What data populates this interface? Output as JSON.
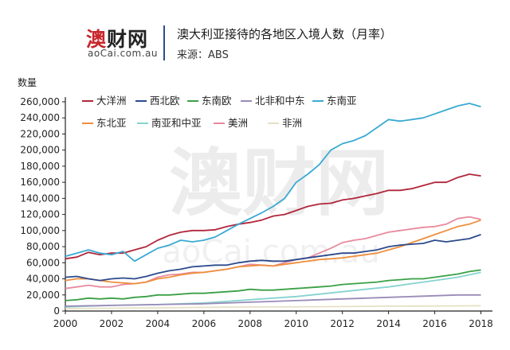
{
  "logo": {
    "main_prefix": "澳",
    "main_rest": "财网",
    "sub": "aoCai.com.au"
  },
  "header": {
    "title": "澳大利亚接待的各地区入境人数（月率）",
    "source": "来源：ABS"
  },
  "watermark": {
    "main": "澳财网",
    "sub": "aoCai.com.au"
  },
  "chart_data": {
    "type": "line",
    "title": "澳大利亚接待的各地区入境人数（月率）",
    "ylabel": "数量",
    "xlabel": "",
    "xlim": [
      2000,
      2018.5
    ],
    "ylim": [
      0,
      260000
    ],
    "x_ticks": [
      2000,
      2002,
      2004,
      2006,
      2008,
      2010,
      2012,
      2014,
      2016,
      2018
    ],
    "y_ticks": [
      0,
      20000,
      40000,
      60000,
      80000,
      100000,
      120000,
      140000,
      160000,
      180000,
      200000,
      220000,
      240000,
      260000
    ],
    "y_tick_labels": [
      "0",
      "20,000",
      "40,000",
      "60,000",
      "80,000",
      "100,000",
      "120,000",
      "140,000",
      "160,000",
      "180,000",
      "200,000",
      "220,000",
      "240,000",
      "260,000"
    ],
    "grid": false,
    "legend": "top-left, inside plot, two rows",
    "series": [
      {
        "name": "大洋洲",
        "color": "#b0263a",
        "x": [
          2000,
          2000.5,
          2001,
          2001.5,
          2002,
          2002.5,
          2003,
          2003.5,
          2004,
          2004.5,
          2005,
          2005.5,
          2006,
          2006.5,
          2007,
          2007.5,
          2008,
          2008.5,
          2009,
          2009.5,
          2010,
          2010.5,
          2011,
          2011.5,
          2012,
          2012.5,
          2013,
          2013.5,
          2014,
          2014.5,
          2015,
          2015.5,
          2016,
          2016.5,
          2017,
          2017.5,
          2018
        ],
        "y": [
          65000,
          67000,
          73000,
          70000,
          72000,
          72000,
          76000,
          80000,
          88000,
          94000,
          98000,
          100000,
          100000,
          101000,
          105000,
          108000,
          110000,
          113000,
          118000,
          120000,
          125000,
          130000,
          133000,
          134000,
          138000,
          140000,
          143000,
          146000,
          150000,
          150000,
          152000,
          156000,
          160000,
          160000,
          166000,
          170000,
          168000
        ]
      },
      {
        "name": "西北欧",
        "color": "#2c4a8c",
        "x": [
          2000,
          2000.5,
          2001,
          2001.5,
          2002,
          2002.5,
          2003,
          2003.5,
          2004,
          2004.5,
          2005,
          2005.5,
          2006,
          2006.5,
          2007,
          2007.5,
          2008,
          2008.5,
          2009,
          2009.5,
          2010,
          2010.5,
          2011,
          2011.5,
          2012,
          2012.5,
          2013,
          2013.5,
          2014,
          2014.5,
          2015,
          2015.5,
          2016,
          2016.5,
          2017,
          2017.5,
          2018
        ],
        "y": [
          42000,
          43000,
          40000,
          38000,
          40000,
          41000,
          40000,
          43000,
          47000,
          50000,
          52000,
          55000,
          56000,
          57000,
          57000,
          60000,
          62000,
          63000,
          62000,
          62000,
          64000,
          66000,
          68000,
          70000,
          72000,
          72000,
          74000,
          76000,
          80000,
          82000,
          83000,
          84000,
          88000,
          86000,
          88000,
          90000,
          95000
        ]
      },
      {
        "name": "东南欧",
        "color": "#3aa047",
        "x": [
          2000,
          2000.5,
          2001,
          2001.5,
          2002,
          2002.5,
          2003,
          2003.5,
          2004,
          2004.5,
          2005,
          2005.5,
          2006,
          2006.5,
          2007,
          2007.5,
          2008,
          2008.5,
          2009,
          2009.5,
          2010,
          2010.5,
          2011,
          2011.5,
          2012,
          2012.5,
          2013,
          2013.5,
          2014,
          2014.5,
          2015,
          2015.5,
          2016,
          2016.5,
          2017,
          2017.5,
          2018
        ],
        "y": [
          13000,
          14000,
          16000,
          15000,
          16000,
          15000,
          17000,
          18000,
          20000,
          20000,
          21000,
          22000,
          22000,
          23000,
          24000,
          25000,
          27000,
          26000,
          26000,
          27000,
          28000,
          29000,
          30000,
          31000,
          33000,
          34000,
          35000,
          36000,
          38000,
          39000,
          40000,
          40000,
          42000,
          44000,
          46000,
          49000,
          51000
        ]
      },
      {
        "name": "北非和中东",
        "color": "#9a8bb8",
        "x": [
          2000,
          2001,
          2002,
          2003,
          2004,
          2005,
          2006,
          2007,
          2008,
          2009,
          2010,
          2011,
          2012,
          2013,
          2014,
          2015,
          2016,
          2017,
          2018
        ],
        "y": [
          6000,
          6500,
          7000,
          7500,
          8000,
          8500,
          9000,
          10000,
          11000,
          12000,
          13000,
          14000,
          15000,
          16000,
          17000,
          18000,
          19000,
          20000,
          20000
        ]
      },
      {
        "name": "东南亚",
        "color": "#3aaad3",
        "x": [
          2000,
          2000.5,
          2001,
          2001.5,
          2002,
          2002.5,
          2003,
          2003.5,
          2004,
          2004.5,
          2005,
          2005.5,
          2006,
          2006.5,
          2007,
          2007.5,
          2008,
          2008.5,
          2009,
          2009.5,
          2010,
          2010.5,
          2011,
          2011.5,
          2012,
          2012.5,
          2013,
          2013.5,
          2014,
          2014.5,
          2015,
          2015.5,
          2016,
          2016.5,
          2017,
          2017.5,
          2018
        ],
        "y": [
          68000,
          72000,
          76000,
          72000,
          70000,
          74000,
          62000,
          70000,
          78000,
          82000,
          88000,
          86000,
          88000,
          92000,
          100000,
          108000,
          115000,
          122000,
          130000,
          140000,
          160000,
          170000,
          182000,
          200000,
          208000,
          212000,
          218000,
          228000,
          238000,
          236000,
          238000,
          240000,
          245000,
          250000,
          255000,
          258000,
          254000
        ]
      },
      {
        "name": "东北亚",
        "color": "#ef8f3c",
        "x": [
          2000,
          2000.5,
          2001,
          2001.5,
          2002,
          2002.5,
          2003,
          2003.5,
          2004,
          2004.5,
          2005,
          2005.5,
          2006,
          2006.5,
          2007,
          2007.5,
          2008,
          2008.5,
          2009,
          2009.5,
          2010,
          2010.5,
          2011,
          2011.5,
          2012,
          2012.5,
          2013,
          2013.5,
          2014,
          2014.5,
          2015,
          2015.5,
          2016,
          2016.5,
          2017,
          2017.5,
          2018
        ],
        "y": [
          38000,
          40000,
          40000,
          38000,
          36000,
          35000,
          34000,
          36000,
          40000,
          42000,
          45000,
          47000,
          48000,
          50000,
          52000,
          55000,
          56000,
          57000,
          56000,
          58000,
          60000,
          62000,
          64000,
          65000,
          66000,
          68000,
          70000,
          72000,
          76000,
          80000,
          85000,
          90000,
          95000,
          100000,
          105000,
          108000,
          113000
        ]
      },
      {
        "name": "南亚和中亚",
        "color": "#86d3cf",
        "x": [
          2000,
          2001,
          2002,
          2003,
          2004,
          2005,
          2006,
          2007,
          2008,
          2009,
          2010,
          2011,
          2012,
          2013,
          2014,
          2015,
          2016,
          2017,
          2018
        ],
        "y": [
          5000,
          6000,
          7000,
          7500,
          8000,
          9000,
          10000,
          12000,
          14000,
          16000,
          18000,
          21000,
          24000,
          27000,
          30000,
          34000,
          38000,
          42000,
          48000
        ]
      },
      {
        "name": "美洲",
        "color": "#e88a9e",
        "x": [
          2000,
          2000.5,
          2001,
          2001.5,
          2002,
          2002.5,
          2003,
          2003.5,
          2004,
          2004.5,
          2005,
          2005.5,
          2006,
          2006.5,
          2007,
          2007.5,
          2008,
          2008.5,
          2009,
          2009.5,
          2010,
          2010.5,
          2011,
          2011.5,
          2012,
          2012.5,
          2013,
          2013.5,
          2014,
          2014.5,
          2015,
          2015.5,
          2016,
          2016.5,
          2017,
          2017.5,
          2018
        ],
        "y": [
          28000,
          30000,
          32000,
          30000,
          30000,
          33000,
          34000,
          36000,
          42000,
          45000,
          46000,
          48000,
          48000,
          50000,
          52000,
          55000,
          58000,
          57000,
          56000,
          60000,
          64000,
          66000,
          72000,
          78000,
          85000,
          88000,
          90000,
          94000,
          98000,
          100000,
          102000,
          104000,
          105000,
          108000,
          115000,
          117000,
          114000
        ]
      },
      {
        "name": "非洲",
        "color": "#e6e0c4",
        "x": [
          2000,
          2002,
          2004,
          2006,
          2008,
          2010,
          2012,
          2014,
          2016,
          2018
        ],
        "y": [
          3000,
          3500,
          4000,
          4500,
          5000,
          5200,
          5500,
          6000,
          6200,
          6500
        ]
      }
    ]
  }
}
